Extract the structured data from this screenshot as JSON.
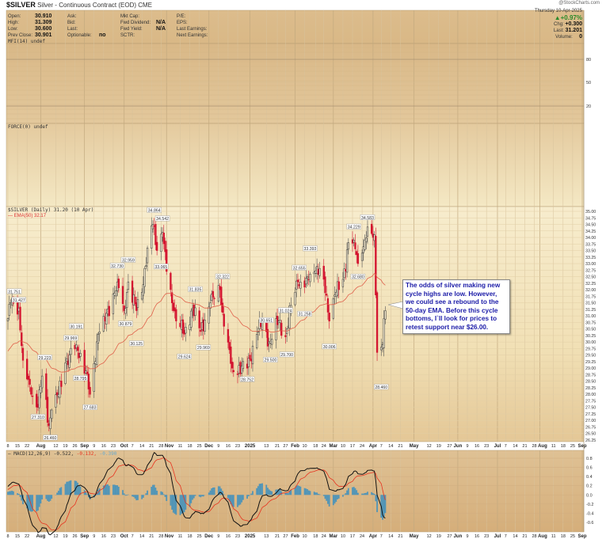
{
  "header": {
    "symbol": "$SILVER",
    "description": "Silver - Continuous Contract (EOD) CME",
    "watermark": "@StockCharts.com",
    "date": "Thursday 10-Apr-2025",
    "pct_change": "▲+0.97%",
    "chg_label": "Chg:",
    "chg": "+0.300",
    "last_label": "Last:",
    "last": "31.201",
    "volume_label": "Volume:",
    "volume": "0",
    "fields": [
      {
        "label": "Open:",
        "value": "30.910"
      },
      {
        "label": "High:",
        "value": "31.309"
      },
      {
        "label": "Low:",
        "value": "30.600"
      },
      {
        "label": "Prev Close:",
        "value": "30.901"
      }
    ],
    "fields2": [
      {
        "label": "Ask:",
        "value": ""
      },
      {
        "label": "Bid:",
        "value": ""
      },
      {
        "label": "Last:",
        "value": ""
      },
      {
        "label": "Optionable:",
        "value": "no"
      }
    ],
    "fields3": [
      {
        "label": "Mkt Cap:",
        "value": ""
      },
      {
        "label": "Fwd Dividend:",
        "value": "N/A"
      },
      {
        "label": "Fwd Yield:",
        "value": "N/A"
      },
      {
        "label": "SCTR:",
        "value": ""
      }
    ],
    "fields4": [
      "P/E:",
      "EPS:",
      "Last Earnings:",
      "Next Earnings:"
    ]
  },
  "panels": {
    "mfi_label": "MFI(14) undef",
    "force_label": "FORCE(0) undef",
    "price_label": "$SILVER (Daily) 31.20 (10 Apr)",
    "ema_label": "EMA(50) 32.17",
    "macd_label": "MACD(12,26,9) -0.522,",
    "macd_signal_label": "-0.132,",
    "macd_hist_label": "-0.390"
  },
  "annotation": "The odds of silver making new cycle highs are low. However, we could see a rebound to the 50-day EMA. Before this cycle bottoms, I`ll look for prices to retest support near $26.00.",
  "colors": {
    "up": "#333333",
    "down": "#d3122e",
    "ema": "#e0604a",
    "macd": "#111111",
    "signal": "#e8321e",
    "hist": "#3a8fc0",
    "annotation": "#1c1ca8"
  },
  "chart_data": {
    "type": "candlestick",
    "title": "$SILVER (Daily)",
    "x_range": [
      "2024-07-08",
      "2025-09-01"
    ],
    "price_ylim": [
      26.25,
      35.0
    ],
    "price_ticks": [
      "35.00",
      "34.75",
      "34.50",
      "34.25",
      "34.00",
      "33.75",
      "33.50",
      "33.25",
      "33.00",
      "32.75",
      "32.50",
      "32.25",
      "32.00",
      "31.75",
      "31.50",
      "31.25",
      "31.00",
      "30.75",
      "30.50",
      "30.25",
      "30.00",
      "29.75",
      "29.50",
      "29.25",
      "29.00",
      "28.75",
      "28.50",
      "28.25",
      "28.00",
      "27.75",
      "27.50",
      "27.25",
      "27.00",
      "26.75",
      "26.50",
      "26.25"
    ],
    "mfi_ticks": [
      "80",
      "50",
      "20"
    ],
    "macd_ylim": [
      -0.75,
      0.95
    ],
    "macd_ticks": [
      "0.8",
      "0.6",
      "0.4",
      "0.2",
      "0.0",
      "-0.2",
      "-0.4",
      "-0.6"
    ],
    "close_waypoints": [
      [
        "2024-07-08",
        30.9
      ],
      [
        "2024-07-10",
        31.5
      ],
      [
        "2024-07-16",
        31.3
      ],
      [
        "2024-07-19",
        29.3
      ],
      [
        "2024-07-25",
        28.0
      ],
      [
        "2024-07-30",
        27.5
      ],
      [
        "2024-08-02",
        28.7
      ],
      [
        "2024-08-07",
        26.8
      ],
      [
        "2024-08-09",
        27.4
      ],
      [
        "2024-08-14",
        28.0
      ],
      [
        "2024-08-19",
        29.2
      ],
      [
        "2024-08-22",
        29.5
      ],
      [
        "2024-08-27",
        29.9
      ],
      [
        "2024-09-03",
        28.9
      ],
      [
        "2024-09-06",
        28.0
      ],
      [
        "2024-09-12",
        30.3
      ],
      [
        "2024-09-17",
        30.8
      ],
      [
        "2024-09-26",
        32.3
      ],
      [
        "2024-10-01",
        31.2
      ],
      [
        "2024-10-04",
        32.3
      ],
      [
        "2024-10-10",
        31.2
      ],
      [
        "2024-10-14",
        31.9
      ],
      [
        "2024-10-18",
        33.6
      ],
      [
        "2024-10-22",
        34.5
      ],
      [
        "2024-10-25",
        33.5
      ],
      [
        "2024-10-29",
        34.2
      ],
      [
        "2024-11-01",
        32.7
      ],
      [
        "2024-11-06",
        31.2
      ],
      [
        "2024-11-14",
        30.3
      ],
      [
        "2024-11-20",
        31.3
      ],
      [
        "2024-11-26",
        30.4
      ],
      [
        "2024-12-03",
        31.5
      ],
      [
        "2024-12-10",
        32.0
      ],
      [
        "2024-12-13",
        30.6
      ],
      [
        "2024-12-19",
        29.0
      ],
      [
        "2024-12-30",
        29.0
      ],
      [
        "2025-01-06",
        30.3
      ],
      [
        "2025-01-10",
        30.8
      ],
      [
        "2025-01-15",
        30.0
      ],
      [
        "2025-01-22",
        30.8
      ],
      [
        "2025-01-27",
        30.2
      ],
      [
        "2025-01-31",
        31.4
      ],
      [
        "2025-02-05",
        32.3
      ],
      [
        "2025-02-10",
        32.1
      ],
      [
        "2025-02-14",
        32.6
      ],
      [
        "2025-02-19",
        32.9
      ],
      [
        "2025-02-24",
        32.4
      ],
      [
        "2025-02-28",
        30.8
      ],
      [
        "2025-03-04",
        31.8
      ],
      [
        "2025-03-10",
        32.4
      ],
      [
        "2025-03-14",
        33.8
      ],
      [
        "2025-03-18",
        33.9
      ],
      [
        "2025-03-21",
        33.0
      ],
      [
        "2025-03-24",
        33.4
      ],
      [
        "2025-03-28",
        34.4
      ],
      [
        "2025-04-01",
        34.0
      ],
      [
        "2025-04-02",
        34.1
      ],
      [
        "2025-04-03",
        31.8
      ],
      [
        "2025-04-04",
        29.6
      ],
      [
        "2025-04-07",
        29.8
      ],
      [
        "2025-04-08",
        29.9
      ],
      [
        "2025-04-09",
        30.9
      ],
      [
        "2025-04-10",
        31.2
      ]
    ],
    "pivot_labels": [
      {
        "date": "2024-07-08",
        "value": "31.751",
        "price": 31.751,
        "pos": "above"
      },
      {
        "date": "2024-07-16",
        "value": "31.427",
        "price": 31.427,
        "pos": "above"
      },
      {
        "date": "2024-07-30",
        "value": "27.310",
        "price": 27.31,
        "pos": "below"
      },
      {
        "date": "2024-08-04",
        "value": "29.223",
        "price": 29.223,
        "pos": "above"
      },
      {
        "date": "2024-08-08",
        "value": "26.460",
        "price": 26.46,
        "pos": "below"
      },
      {
        "date": "2024-08-23",
        "value": "29.969",
        "price": 29.969,
        "pos": "above"
      },
      {
        "date": "2024-08-27",
        "value": "30.191",
        "price": 30.191,
        "pos": "above"
      },
      {
        "date": "2024-08-30",
        "value": "28.795",
        "price": 28.795,
        "pos": "below"
      },
      {
        "date": "2024-09-06",
        "value": "27.683",
        "price": 27.683,
        "pos": "below"
      },
      {
        "date": "2024-09-26",
        "value": "32.730",
        "price": 32.73,
        "pos": "above"
      },
      {
        "date": "2024-10-02",
        "value": "30.879",
        "price": 30.879,
        "pos": "below"
      },
      {
        "date": "2024-10-04",
        "value": "32.959",
        "price": 32.959,
        "pos": "above"
      },
      {
        "date": "2024-10-10",
        "value": "30.125",
        "price": 30.125,
        "pos": "below"
      },
      {
        "date": "2024-10-23",
        "value": "34.864",
        "price": 34.864,
        "pos": "above"
      },
      {
        "date": "2024-10-29",
        "value": "34.542",
        "price": 34.542,
        "pos": "above"
      },
      {
        "date": "2024-10-28",
        "value": "33.065",
        "price": 33.065,
        "pos": "below"
      },
      {
        "date": "2024-11-14",
        "value": "29.624",
        "price": 29.624,
        "pos": "below"
      },
      {
        "date": "2024-11-22",
        "value": "31.835",
        "price": 31.835,
        "pos": "above"
      },
      {
        "date": "2024-11-28",
        "value": "29.969",
        "price": 29.969,
        "pos": "below"
      },
      {
        "date": "2024-12-12",
        "value": "32.322",
        "price": 32.322,
        "pos": "above"
      },
      {
        "date": "2024-12-30",
        "value": "28.752",
        "price": 28.752,
        "pos": "below"
      },
      {
        "date": "2025-01-13",
        "value": "30.651",
        "price": 30.651,
        "pos": "above"
      },
      {
        "date": "2025-01-16",
        "value": "29.500",
        "price": 29.5,
        "pos": "below"
      },
      {
        "date": "2025-01-27",
        "value": "31.024",
        "price": 31.024,
        "pos": "above"
      },
      {
        "date": "2025-01-28",
        "value": "29.700",
        "price": 29.7,
        "pos": "below"
      },
      {
        "date": "2025-02-06",
        "value": "32.655",
        "price": 32.655,
        "pos": "above"
      },
      {
        "date": "2025-02-10",
        "value": "31.258",
        "price": 31.258,
        "pos": "below"
      },
      {
        "date": "2025-02-14",
        "value": "33.393",
        "price": 33.393,
        "pos": "above"
      },
      {
        "date": "2025-02-28",
        "value": "30.006",
        "price": 30.006,
        "pos": "below"
      },
      {
        "date": "2025-03-18",
        "value": "34.229",
        "price": 34.229,
        "pos": "above"
      },
      {
        "date": "2025-03-21",
        "value": "32.680",
        "price": 32.68,
        "pos": "below"
      },
      {
        "date": "2025-03-28",
        "value": "34.583",
        "price": 34.583,
        "pos": "above"
      },
      {
        "date": "2025-04-07",
        "value": "28.460",
        "price": 28.46,
        "pos": "below"
      }
    ],
    "last": {
      "close": 31.2,
      "ema50": 32.17,
      "macd": -0.522,
      "signal": -0.132,
      "histogram": -0.39
    },
    "date_ticks": [
      {
        "l": "8",
        "d": "2024-07-08"
      },
      {
        "l": "15",
        "d": "2024-07-15"
      },
      {
        "l": "22",
        "d": "2024-07-22"
      },
      {
        "l": "Aug",
        "d": "2024-08-01",
        "m": 1
      },
      {
        "l": "12",
        "d": "2024-08-12"
      },
      {
        "l": "19",
        "d": "2024-08-19"
      },
      {
        "l": "26",
        "d": "2024-08-26"
      },
      {
        "l": "Sep",
        "d": "2024-09-02",
        "m": 1
      },
      {
        "l": "9",
        "d": "2024-09-09"
      },
      {
        "l": "16",
        "d": "2024-09-16"
      },
      {
        "l": "23",
        "d": "2024-09-23"
      },
      {
        "l": "Oct",
        "d": "2024-10-01",
        "m": 1
      },
      {
        "l": "7",
        "d": "2024-10-07"
      },
      {
        "l": "14",
        "d": "2024-10-14"
      },
      {
        "l": "21",
        "d": "2024-10-21"
      },
      {
        "l": "28",
        "d": "2024-10-28"
      },
      {
        "l": "Nov",
        "d": "2024-11-01",
        "m": 1
      },
      {
        "l": "11",
        "d": "2024-11-11"
      },
      {
        "l": "18",
        "d": "2024-11-18"
      },
      {
        "l": "25",
        "d": "2024-11-25"
      },
      {
        "l": "Dec",
        "d": "2024-12-02",
        "m": 1
      },
      {
        "l": "9",
        "d": "2024-12-09"
      },
      {
        "l": "16",
        "d": "2024-12-16"
      },
      {
        "l": "23",
        "d": "2024-12-23"
      },
      {
        "l": "2025",
        "d": "2025-01-01",
        "m": 1
      },
      {
        "l": "13",
        "d": "2025-01-13"
      },
      {
        "l": "21",
        "d": "2025-01-21"
      },
      {
        "l": "27",
        "d": "2025-01-27"
      },
      {
        "l": "Feb",
        "d": "2025-02-03",
        "m": 1
      },
      {
        "l": "10",
        "d": "2025-02-10"
      },
      {
        "l": "18",
        "d": "2025-02-18"
      },
      {
        "l": "24",
        "d": "2025-02-24"
      },
      {
        "l": "Mar",
        "d": "2025-03-03",
        "m": 1
      },
      {
        "l": "10",
        "d": "2025-03-10"
      },
      {
        "l": "17",
        "d": "2025-03-17"
      },
      {
        "l": "24",
        "d": "2025-03-24"
      },
      {
        "l": "Apr",
        "d": "2025-04-01",
        "m": 1
      },
      {
        "l": "7",
        "d": "2025-04-07"
      },
      {
        "l": "14",
        "d": "2025-04-14"
      },
      {
        "l": "21",
        "d": "2025-04-21"
      },
      {
        "l": "May",
        "d": "2025-05-01",
        "m": 1
      },
      {
        "l": "12",
        "d": "2025-05-12"
      },
      {
        "l": "19",
        "d": "2025-05-19"
      },
      {
        "l": "27",
        "d": "2025-05-27"
      },
      {
        "l": "Jun",
        "d": "2025-06-02",
        "m": 1
      },
      {
        "l": "9",
        "d": "2025-06-09"
      },
      {
        "l": "16",
        "d": "2025-06-16"
      },
      {
        "l": "23",
        "d": "2025-06-23"
      },
      {
        "l": "Jul",
        "d": "2025-07-01",
        "m": 1
      },
      {
        "l": "7",
        "d": "2025-07-07"
      },
      {
        "l": "14",
        "d": "2025-07-14"
      },
      {
        "l": "21",
        "d": "2025-07-21"
      },
      {
        "l": "28",
        "d": "2025-07-28"
      },
      {
        "l": "Aug",
        "d": "2025-08-01",
        "m": 1
      },
      {
        "l": "11",
        "d": "2025-08-11"
      },
      {
        "l": "18",
        "d": "2025-08-18"
      },
      {
        "l": "25",
        "d": "2025-08-25"
      },
      {
        "l": "Sep",
        "d": "2025-09-01",
        "m": 1
      }
    ]
  }
}
